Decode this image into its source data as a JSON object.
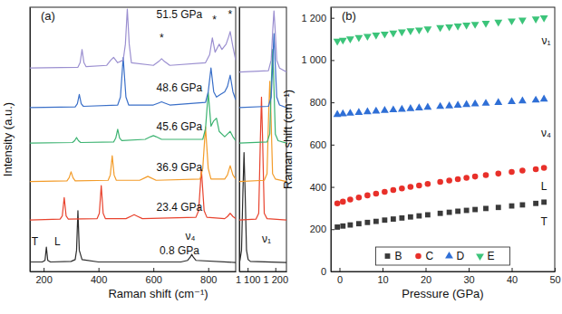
{
  "chart_data": [
    {
      "type": "line",
      "title": "(a)",
      "x_label": "Raman shift (cm⁻¹)",
      "y_label": "Intensity (a.u.)",
      "xlim": [
        150,
        900
      ],
      "xticks": [
        200,
        400,
        600,
        800
      ],
      "ylim": [
        0,
        100
      ],
      "yticks": [],
      "tick_labels": "x",
      "series": [
        {
          "color": "#2b2b2b",
          "x": [
            150,
            195,
            205,
            210,
            215,
            225,
            300,
            315,
            320,
            325,
            330,
            340,
            400,
            700,
            725,
            735,
            740,
            745,
            755,
            900
          ],
          "values": [
            3.6,
            3.6,
            4.2,
            9.2,
            4.2,
            3.6,
            3.8,
            4.5,
            8,
            23,
            8,
            4.5,
            3.6,
            3.6,
            4.2,
            5.5,
            6.5,
            5.5,
            4.2,
            3.4
          ]
        },
        {
          "color": "#e8432e",
          "x": [
            150,
            260,
            268,
            275,
            282,
            290,
            395,
            403,
            410,
            417,
            425,
            500,
            520,
            530,
            540,
            560,
            755,
            765,
            775,
            785,
            795,
            860,
            870,
            880,
            890,
            900
          ],
          "values": [
            19.5,
            19.8,
            21,
            28,
            21,
            19.8,
            20,
            22,
            32.5,
            22,
            20,
            20,
            21,
            21.5,
            21,
            20,
            20.5,
            23,
            38.7,
            23,
            20.5,
            20,
            20.8,
            22,
            20.8,
            20
          ]
        },
        {
          "color": "#f39c2a",
          "x": [
            150,
            285,
            293,
            300,
            307,
            315,
            435,
            443,
            450,
            457,
            465,
            550,
            570,
            580,
            590,
            610,
            770,
            780,
            790,
            800,
            810,
            860,
            870,
            880,
            890,
            900
          ],
          "values": [
            34,
            34.3,
            35.5,
            37.7,
            35.5,
            34.3,
            34.5,
            36.5,
            43.8,
            36.5,
            34.5,
            34.5,
            35.5,
            36,
            35.5,
            34.5,
            35,
            39,
            54.8,
            39,
            35,
            35,
            36.5,
            40,
            36.5,
            35
          ]
        },
        {
          "color": "#3cb371",
          "x": [
            150,
            305,
            313,
            320,
            327,
            335,
            455,
            463,
            470,
            477,
            485,
            570,
            590,
            600,
            610,
            630,
            780,
            790,
            800,
            810,
            820,
            830,
            840,
            860,
            870,
            880,
            890,
            900
          ],
          "values": [
            48.6,
            48.8,
            49.5,
            50.7,
            49.5,
            48.8,
            49,
            50.5,
            53.8,
            50.5,
            49.5,
            50,
            51,
            51.4,
            51,
            50,
            50,
            54,
            67.8,
            55,
            57,
            58,
            53,
            51,
            52,
            53,
            51,
            49.5
          ]
        },
        {
          "color": "#3a6fc8",
          "x": [
            150,
            315,
            323,
            330,
            337,
            345,
            470,
            480,
            490,
            500,
            510,
            600,
            620,
            630,
            640,
            660,
            790,
            800,
            810,
            820,
            830,
            845,
            860,
            870,
            880,
            890,
            900
          ],
          "values": [
            62,
            62.3,
            63.5,
            67,
            63.5,
            62.5,
            63,
            66,
            81,
            66,
            63,
            63,
            63.8,
            64.2,
            63.8,
            63,
            64,
            68,
            77,
            68,
            66,
            67,
            68,
            70,
            74.3,
            68,
            65
          ]
        },
        {
          "color": "#9b8fd0",
          "x": [
            150,
            325,
            333,
            340,
            347,
            355,
            430,
            445,
            455,
            470,
            490,
            498,
            505,
            512,
            520,
            600,
            620,
            630,
            640,
            660,
            790,
            805,
            815,
            825,
            835,
            840,
            850,
            865,
            875,
            880,
            890,
            900
          ],
          "values": [
            77,
            77.3,
            79,
            84,
            79,
            77.5,
            78,
            80,
            81,
            79,
            80,
            86,
            99.3,
            86,
            79,
            78,
            79.5,
            80.5,
            79.5,
            78,
            79,
            82,
            88.4,
            83,
            85,
            86,
            84,
            86,
            89,
            90.8,
            85,
            80
          ]
        }
      ],
      "annotations": [
        {
          "text": "51.5 GPa",
          "x": 695,
          "y": 96.9
        },
        {
          "text": "48.6 GPa",
          "x": 695,
          "y": 69.2
        },
        {
          "text": "45.6 GPa",
          "x": 695,
          "y": 54.5
        },
        {
          "text": "36.9 GPa",
          "x": 695,
          "y": 39
        },
        {
          "text": "23.4 GPa",
          "x": 695,
          "y": 24
        },
        {
          "text": "0.8 GPa",
          "x": 695,
          "y": 7.5
        },
        {
          "text": "T",
          "x": 168,
          "y": 11
        },
        {
          "text": "L",
          "x": 250,
          "y": 11
        },
        {
          "text": "ν₄",
          "x": 735,
          "y": 13
        },
        {
          "text": "*",
          "x": 630,
          "y": 88
        },
        {
          "text": "*",
          "x": 823,
          "y": 95
        },
        {
          "text": "*",
          "x": 880,
          "y": 97
        }
      ]
    },
    {
      "type": "line",
      "xlim": [
        1070,
        1240
      ],
      "xticks": [
        {
          "value": 1100,
          "label": "1 100"
        },
        {
          "value": 1200,
          "label": "1 200"
        }
      ],
      "ylim": [
        0,
        100
      ],
      "yticks": [],
      "tick_labels": "x",
      "series": [
        {
          "color": "#2b2b2b",
          "x": [
            1070,
            1072,
            1078,
            1083,
            1087,
            1091,
            1096,
            1102,
            1110,
            1240
          ],
          "values": [
            3.6,
            4,
            8,
            30,
            45,
            30,
            8,
            4.5,
            3.8,
            3.4
          ]
        },
        {
          "color": "#e8432e",
          "x": [
            1070,
            1130,
            1140,
            1146,
            1150,
            1154,
            1160,
            1170,
            1240
          ],
          "values": [
            19.5,
            19.8,
            22,
            50,
            66,
            50,
            22,
            20,
            19.5
          ]
        },
        {
          "color": "#f39c2a",
          "x": [
            1070,
            1160,
            1170,
            1176,
            1180,
            1184,
            1190,
            1200,
            1240
          ],
          "values": [
            34,
            34.5,
            37,
            60,
            72,
            60,
            37,
            35,
            34
          ]
        },
        {
          "color": "#3cb371",
          "x": [
            1070,
            1170,
            1180,
            1186,
            1190,
            1194,
            1200,
            1210,
            1240
          ],
          "values": [
            48.6,
            49,
            52,
            73,
            84,
            73,
            52,
            49.5,
            48.6
          ]
        },
        {
          "color": "#3a6fc8",
          "x": [
            1070,
            1175,
            1185,
            1191,
            1195,
            1199,
            1205,
            1215,
            1240
          ],
          "values": [
            62,
            62.5,
            66,
            80,
            90,
            80,
            66,
            63,
            62
          ]
        },
        {
          "color": "#9b8fd0",
          "x": [
            1070,
            1175,
            1185,
            1191,
            1195,
            1199,
            1205,
            1215,
            1240
          ],
          "values": [
            75.5,
            76,
            80,
            92,
            98.6,
            92,
            80,
            77,
            75.5
          ]
        }
      ],
      "annotations": [
        {
          "text": "ν₁",
          "x": 1168,
          "y": 12
        }
      ]
    },
    {
      "type": "scatter",
      "title": "(b)",
      "x_label": "Pressure (GPa)",
      "y_label": "Raman shift (cm⁻¹)",
      "x": [
        -0.5,
        0.8,
        2.5,
        4.5,
        6.5,
        8.5,
        10.5,
        12.5,
        14.5,
        16.5,
        18.5,
        20.5,
        23.4,
        25.5,
        27.5,
        29.5,
        31.5,
        34,
        36.9,
        40,
        42.5,
        45.6,
        47.5
      ],
      "xlim": [
        -2,
        50
      ],
      "xticks": [
        0,
        10,
        20,
        30,
        40,
        50
      ],
      "ylim": [
        0,
        1250
      ],
      "yticks": [
        0,
        200,
        400,
        600,
        800,
        {
          "value": 1000,
          "label": "1 000"
        },
        {
          "value": 1200,
          "label": "1 200"
        }
      ],
      "legend": "lower center",
      "series": [
        {
          "name": "B",
          "color": "#3a3a3a",
          "marker": "square",
          "values": [
            210,
            215,
            220,
            226,
            232,
            237,
            243,
            248,
            253,
            258,
            263,
            268,
            275,
            280,
            285,
            289,
            293,
            298,
            303,
            310,
            315,
            322,
            328
          ]
        },
        {
          "name": "C",
          "color": "#e8302a",
          "marker": "circle",
          "values": [
            322,
            330,
            340,
            350,
            360,
            368,
            377,
            385,
            393,
            400,
            407,
            414,
            424,
            430,
            437,
            443,
            449,
            456,
            463,
            471,
            477,
            484,
            490
          ]
        },
        {
          "name": "D",
          "color": "#2f6fd6",
          "marker": "triangle-up",
          "values": [
            742,
            745,
            748,
            752,
            755,
            758,
            761,
            764,
            767,
            770,
            773,
            776,
            780,
            783,
            786,
            789,
            792,
            795,
            799,
            803,
            806,
            810,
            815
          ]
        },
        {
          "name": "E",
          "color": "#3cc47a",
          "marker": "triangle-down",
          "values": [
            1090,
            1095,
            1101,
            1107,
            1113,
            1119,
            1124,
            1129,
            1134,
            1139,
            1143,
            1148,
            1154,
            1158,
            1162,
            1166,
            1170,
            1175,
            1180,
            1186,
            1190,
            1195,
            1200
          ]
        }
      ],
      "annotations": [
        {
          "text": "ν₁",
          "x": 48,
          "y": 1088
        },
        {
          "text": "ν₄",
          "x": 48,
          "y": 650
        },
        {
          "text": "L",
          "x": 47.5,
          "y": 400
        },
        {
          "text": "T",
          "x": 47.5,
          "y": 232
        }
      ]
    }
  ]
}
